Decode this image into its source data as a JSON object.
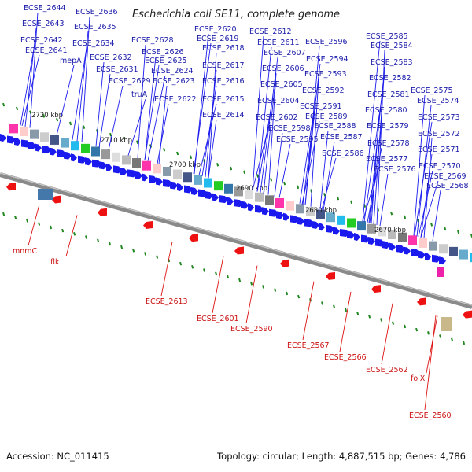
{
  "title": "Escherichia coli SE11, complete genome",
  "footer": {
    "accession": "Accession: NC_011415",
    "topology": "Topology: circular; Length: 4,887,515 bp; Genes: 4,786"
  },
  "colors": {
    "forward_gene": "#1a1aee",
    "reverse_gene": "#ee1111",
    "backbone": "#808080",
    "tick": "#228822",
    "label_top": "#1a1aaa",
    "label_bottom": "#cc1111"
  },
  "ruler": [
    {
      "label": "2720 kbp"
    },
    {
      "label": "2710 kbp"
    },
    {
      "label": "2700 kbp"
    },
    {
      "label": "2690 kbp"
    },
    {
      "label": "2680 kbp"
    },
    {
      "label": "2670 kbp"
    }
  ],
  "top_labels": [
    "ECSE_2644",
    "ECSE_2643",
    "ECSE_2642",
    "ECSE_2641",
    "ECSE_2636",
    "ECSE_2635",
    "ECSE_2634",
    "mepA",
    "ECSE_2632",
    "ECSE_2631",
    "ECSE_2629",
    "truA",
    "ECSE_2628",
    "ECSE_2626",
    "ECSE_2625",
    "ECSE_2624",
    "ECSE_2623",
    "ECSE_2622",
    "ECSE_2620",
    "ECSE_2619",
    "ECSE_2618",
    "ECSE_2617",
    "ECSE_2616",
    "ECSE_2615",
    "ECSE_2614",
    "ECSE_2612",
    "ECSE_2611",
    "ECSE_2607",
    "ECSE_2606",
    "ECSE_2605",
    "ECSE_2604",
    "ECSE_2602",
    "ECSE_2598",
    "ECSE_2595",
    "ECSE_2596",
    "ECSE_2594",
    "ECSE_2593",
    "ECSE_2592",
    "ECSE_2591",
    "ECSE_2589",
    "ECSE_2588",
    "ECSE_2587",
    "ECSE_2586",
    "ECSE_2585",
    "ECSE_2584",
    "ECSE_2583",
    "ECSE_2582",
    "ECSE_2581",
    "ECSE_2580",
    "ECSE_2579",
    "ECSE_2578",
    "ECSE_2577",
    "ECSE_2576",
    "ECSE_2575",
    "ECSE_2574",
    "ECSE_2573",
    "ECSE_2572",
    "ECSE_2571",
    "ECSE_2570",
    "ECSE_2569",
    "ECSE_2568"
  ],
  "bottom_labels": [
    "mnmC",
    "flk",
    "ECSE_2613",
    "ECSE_2601",
    "ECSE_2590",
    "ECSE_2567",
    "ECSE_2566",
    "ECSE_2562",
    "folX",
    "ECSE_2560"
  ]
}
